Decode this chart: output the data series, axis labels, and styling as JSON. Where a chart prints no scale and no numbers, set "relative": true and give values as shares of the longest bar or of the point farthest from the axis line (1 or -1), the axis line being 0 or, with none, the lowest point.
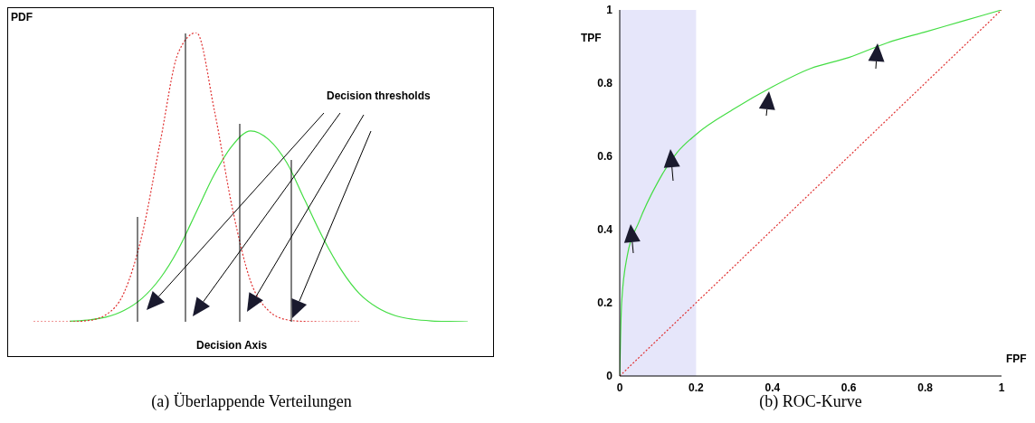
{
  "chart_data": [
    {
      "type": "line",
      "relative": true,
      "ylabel": "PDF",
      "xlabel": "Decision Axis",
      "legend": false,
      "grid": false,
      "marker": "none",
      "categories": [
        null,
        null,
        null,
        null,
        null,
        null,
        null,
        null,
        null,
        null,
        null,
        null,
        null,
        null,
        null,
        null,
        null,
        null,
        null,
        null,
        null,
        null,
        null,
        null,
        null
      ],
      "series": [
        {
          "color": "#44dd44",
          "line_style": "solid",
          "values": [
            null,
            null,
            0.002,
            0.006,
            0.016,
            0.039,
            0.081,
            0.15,
            0.25,
            0.38,
            0.51,
            0.61,
            0.66,
            0.63,
            0.55,
            0.42,
            0.29,
            0.18,
            0.098,
            0.049,
            0.021,
            0.0085,
            0.003,
            0.001,
            0
          ]
        },
        {
          "color": "#e03030",
          "line_style": "dotted",
          "values": [
            0,
            0,
            0,
            0.004,
            0.024,
            0.1,
            0.3,
            0.62,
            0.93,
            1,
            0.73,
            0.39,
            0.14,
            0.038,
            0.007,
            0.001,
            0,
            0,
            0,
            null,
            null,
            null,
            null,
            null,
            null
          ]
        }
      ],
      "annotations": [
        "Decision thresholds",
        "(a) Überlappende Verteilungen"
      ]
    },
    {
      "type": "line",
      "xlabel": "FPF",
      "ylabel": "TPF",
      "legend": false,
      "grid": false,
      "marker": "none",
      "xlim": [
        0,
        1
      ],
      "ylim": [
        0,
        1
      ],
      "xticks": [
        0,
        0.2,
        0.4,
        0.6,
        0.8,
        1
      ],
      "yticks": [
        0,
        0.2,
        0.4,
        0.6,
        0.8,
        1
      ],
      "series": [
        {
          "color": "#44dd44",
          "line_style": "solid",
          "x": [
            0,
            0.005,
            0.02,
            0.05,
            0.1,
            0.15,
            0.2,
            0.3,
            0.4,
            0.5,
            0.6,
            0.7,
            0.8,
            0.9,
            1
          ],
          "values": [
            0,
            0.2,
            0.33,
            0.42,
            0.53,
            0.61,
            0.66,
            0.73,
            0.79,
            0.84,
            0.87,
            0.91,
            0.94,
            0.97,
            1
          ]
        },
        {
          "color": "#e03030",
          "line_style": "dotted",
          "x": [
            0,
            1
          ],
          "values": [
            0,
            1
          ]
        }
      ],
      "bands": [
        {
          "axis": "x",
          "from": 0,
          "to": 0.2,
          "color": "#e6e6fa"
        }
      ],
      "annotations": [
        "(b) ROC-Kurve"
      ]
    }
  ]
}
